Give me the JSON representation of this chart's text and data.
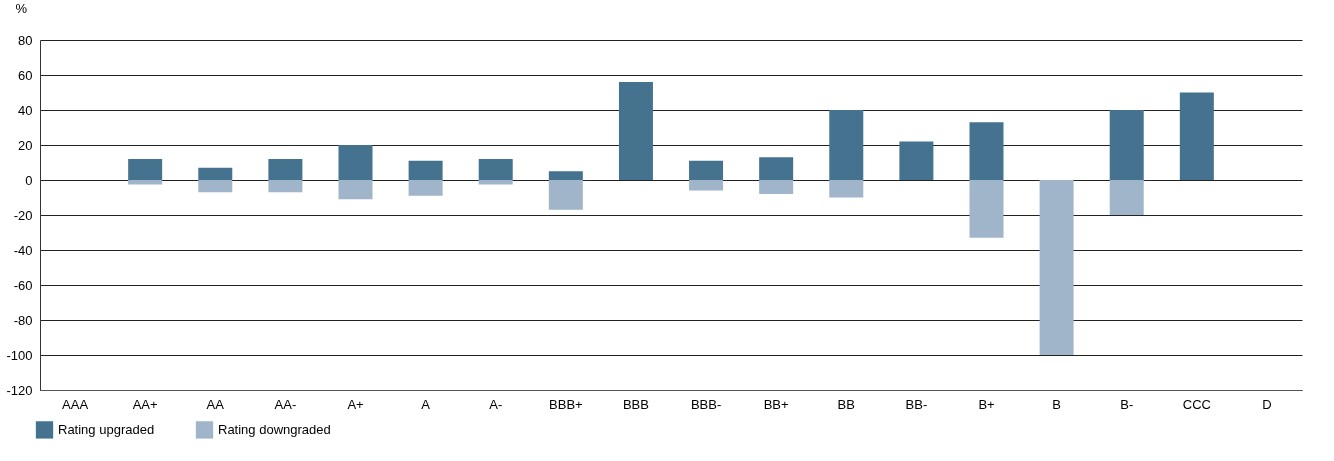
{
  "chart_data": {
    "type": "bar",
    "ylabel": "%",
    "categories": [
      "AAA",
      "AA+",
      "AA",
      "AA-",
      "A+",
      "A",
      "A-",
      "BBB+",
      "BBB",
      "BBB-",
      "BB+",
      "BB",
      "BB-",
      "B+",
      "B",
      "B-",
      "CCC",
      "D"
    ],
    "series": [
      {
        "name": "Rating upgraded",
        "color": "#44728f",
        "values": [
          0,
          12,
          7,
          12,
          20,
          11,
          12,
          5,
          56,
          11,
          13,
          40,
          22,
          33,
          0,
          40,
          50,
          0
        ]
      },
      {
        "name": "Rating downgraded",
        "color": "#a0b4ca",
        "values": [
          0,
          -2.5,
          -7,
          -7,
          -11,
          -9,
          -2.5,
          -17,
          0,
          -6,
          -8,
          -10,
          0,
          -33,
          -100,
          -20,
          0,
          0
        ]
      }
    ],
    "ylim": [
      -120,
      80
    ],
    "yticks": [
      -120,
      -100,
      -80,
      -60,
      -40,
      -20,
      0,
      20,
      40,
      60,
      80
    ],
    "grid": "y",
    "legend": "bottom left",
    "stacked": true
  }
}
